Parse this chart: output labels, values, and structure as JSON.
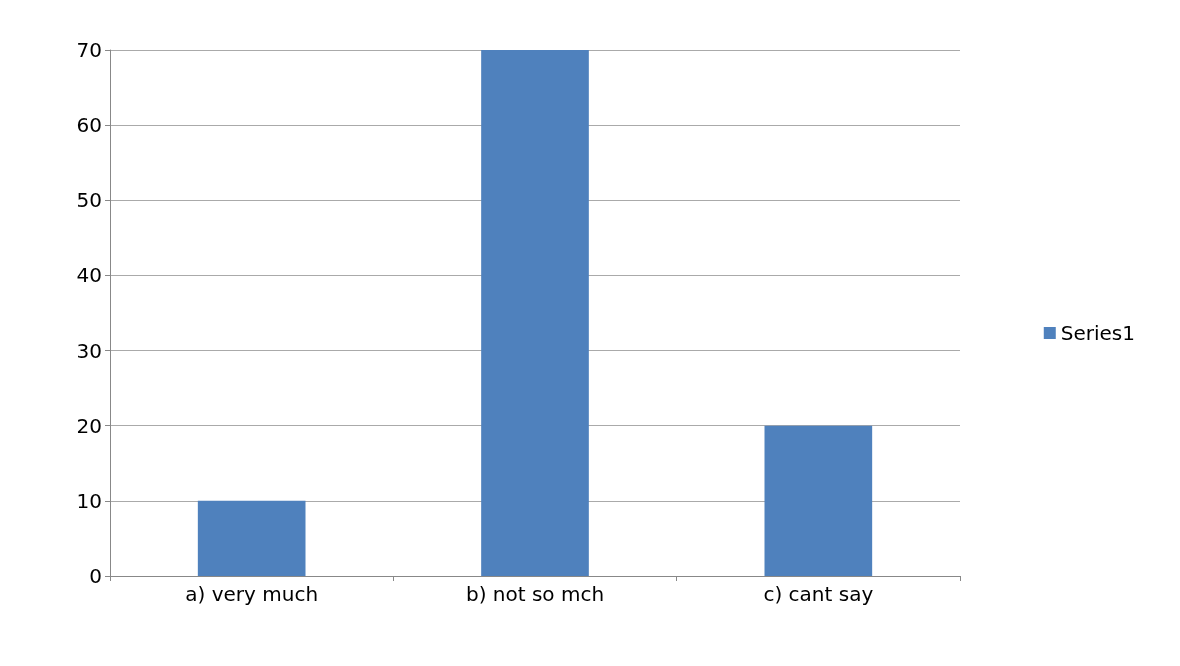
{
  "chart_data": {
    "type": "bar",
    "categories": [
      "a) very much",
      "b) not so mch",
      "c) cant say"
    ],
    "series": [
      {
        "name": "Series1",
        "color": "#4f81bd",
        "values": [
          10,
          70,
          20
        ]
      }
    ],
    "ylim": [
      0,
      70
    ],
    "yticks": [
      0,
      10,
      20,
      30,
      40,
      50,
      60,
      70
    ],
    "grid": "y",
    "legend": "right"
  }
}
